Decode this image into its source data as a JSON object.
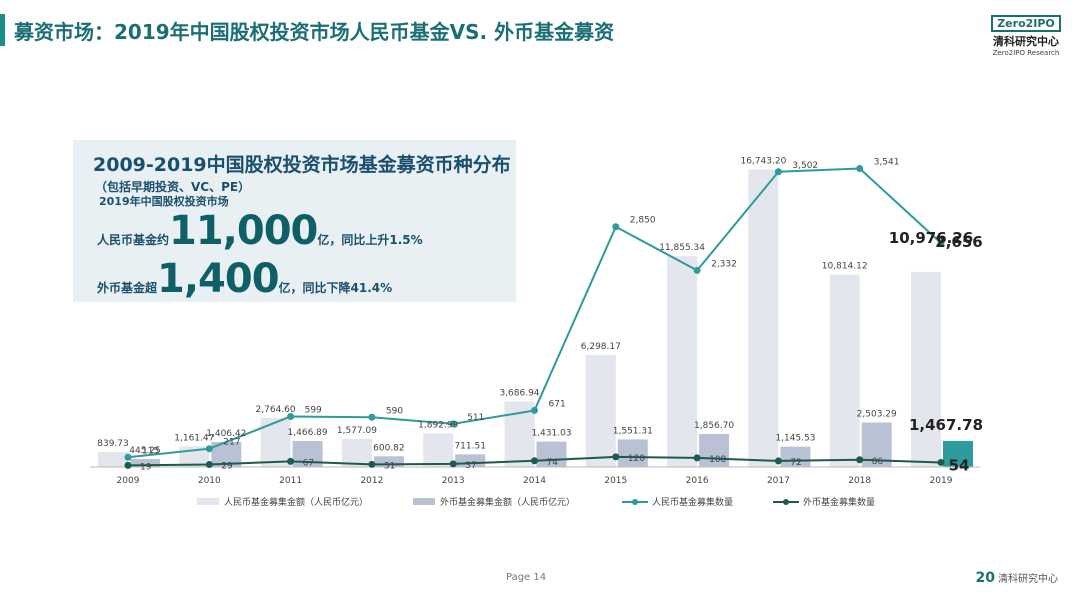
{
  "header": {
    "title": "募资市场：2019年中国股权投资市场人民币基金VS. 外币基金募资",
    "logo_box": "Zero2IPO",
    "logo_cn": "清科研究中心",
    "logo_en": "Zero2IPO Research"
  },
  "info": {
    "heading": "2009-2019中国股权投资市场基金募资币种分布",
    "subheading": "（包括早期投资、VC、PE）",
    "market": "2019年中国股权投资市场",
    "rmb_label": "人民币基金约",
    "rmb_value": "11,000",
    "rmb_unit": "亿，同比上升1.5%",
    "fx_label": "外币基金超",
    "fx_value": "1,400",
    "fx_unit": "亿，同比下降41.4%"
  },
  "footer": {
    "page": "Page 14",
    "logo_mark": "20",
    "logo_text": "清科研究中心"
  },
  "colors": {
    "rmb_bar": "#e3e6ec",
    "fx_bar": "#b9c1d4",
    "fx_bar_2019": "#2e9a9c",
    "rmb_line": "#2e9a9c",
    "fx_line": "#1e5a50"
  },
  "chart_data": {
    "type": "bar",
    "categories": [
      "2009",
      "2010",
      "2011",
      "2012",
      "2013",
      "2014",
      "2015",
      "2016",
      "2017",
      "2018",
      "2019"
    ],
    "series": [
      {
        "name": "人民币基金募集金额（人民币亿元）",
        "type": "bar",
        "values": [
          839.73,
          1161.47,
          2764.6,
          1577.09,
          1892.99,
          3686.94,
          6298.17,
          11855.34,
          16743.2,
          10814.12,
          10976.26
        ],
        "labels": [
          "839.73",
          "1,161.47",
          "2,764.60",
          "1,577.09",
          "1,892.99",
          "3,686.94",
          "6,298.17",
          "11,855.34",
          "16,743.20",
          "10,814.12",
          "10,976.26"
        ]
      },
      {
        "name": "外币基金募集金额（人民币亿元）",
        "type": "bar",
        "values": [
          445.25,
          1406.42,
          1466.89,
          600.82,
          711.51,
          1431.03,
          1551.31,
          1856.7,
          1145.53,
          2503.29,
          1467.78
        ],
        "labels": [
          "445.25",
          "1,406.42",
          "1,466.89",
          "600.82",
          "711.51",
          "1,431.03",
          "1,551.31",
          "1,856.70",
          "1,145.53",
          "2,503.29",
          "1,467.78"
        ]
      },
      {
        "name": "人民币基金募集数量",
        "type": "line",
        "values": [
          115,
          217,
          599,
          590,
          511,
          671,
          2850,
          2332,
          3502,
          3541,
          2656
        ],
        "labels": [
          "115",
          "217",
          "599",
          "590",
          "511",
          "671",
          "2,850",
          "2,332",
          "3,502",
          "3,541",
          "2,656"
        ]
      },
      {
        "name": "外币基金募集数量",
        "type": "line",
        "values": [
          19,
          29,
          67,
          31,
          37,
          74,
          120,
          108,
          72,
          86,
          54
        ],
        "labels": [
          "19",
          "29",
          "67",
          "31",
          "37",
          "74",
          "120",
          "108",
          "72",
          "86",
          "54"
        ]
      }
    ],
    "legend_position": "bottom"
  }
}
